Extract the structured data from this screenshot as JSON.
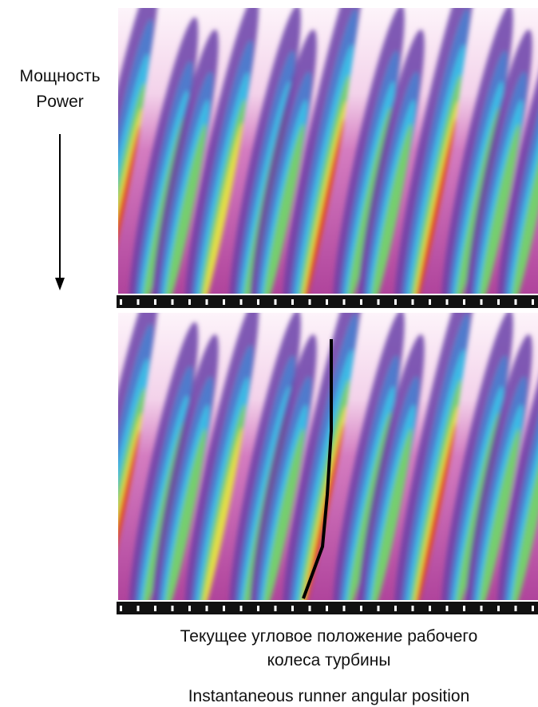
{
  "left_label": {
    "line1": "Мощность",
    "line2": "Power"
  },
  "caption": {
    "russian_line1": "Текущее угловое положение рабочего",
    "russian_line2": "колеса турбины",
    "english": "Instantaneous runner angular position"
  }
}
